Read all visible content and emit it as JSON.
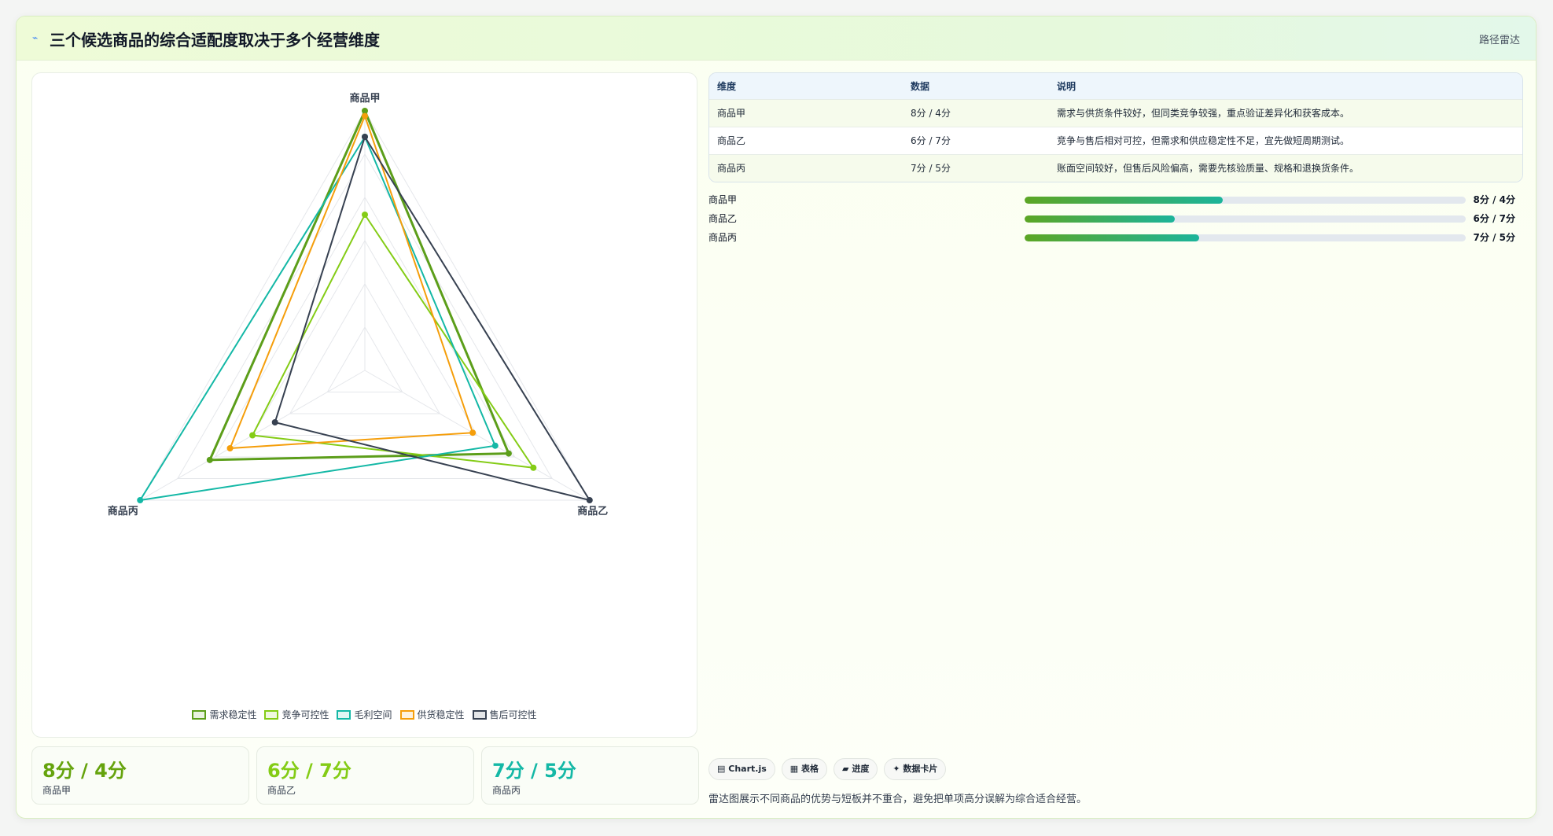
{
  "header": {
    "icon": "chart-line-icon",
    "title": "三个候选商品的综合适配度取决于多个经营维度",
    "tag": "路径雷达"
  },
  "chart_data": {
    "type": "radar",
    "axes": [
      "商品甲",
      "商品乙",
      "商品丙"
    ],
    "range": [
      0,
      10
    ],
    "grid_levels": 6,
    "series": [
      {
        "name": "需求稳定性",
        "values": [
          10,
          6.4,
          6.9
        ],
        "color": "#5c9e1a"
      },
      {
        "name": "竞争可控性",
        "values": [
          6,
          7.5,
          5
        ],
        "color": "#84cc16"
      },
      {
        "name": "毛利空间",
        "values": [
          9,
          5.8,
          10
        ],
        "color": "#14b8a6"
      },
      {
        "name": "供货稳定性",
        "values": [
          9.8,
          4.8,
          6
        ],
        "color": "#f59e0b"
      },
      {
        "name": "售后可控性",
        "values": [
          9,
          10,
          4
        ],
        "color": "#374151"
      }
    ],
    "legend_position": "bottom"
  },
  "stats": [
    {
      "value": "8分 / 4分",
      "label": "商品甲",
      "color": "#65a30d"
    },
    {
      "value": "6分 / 7分",
      "label": "商品乙",
      "color": "#84cc16"
    },
    {
      "value": "7分 / 5分",
      "label": "商品丙",
      "color": "#14b8a6"
    }
  ],
  "table": {
    "headers": [
      "维度",
      "数据",
      "说明"
    ],
    "rows": [
      [
        "商品甲",
        "8分 / 4分",
        "需求与供货条件较好，但同类竞争较强，重点验证差异化和获客成本。"
      ],
      [
        "商品乙",
        "6分 / 7分",
        "竞争与售后相对可控，但需求和供应稳定性不足，宜先做短周期测试。"
      ],
      [
        "商品丙",
        "7分 / 5分",
        "账面空间较好，但售后风险偏高，需要先核验质量、规格和退换货条件。"
      ]
    ]
  },
  "progress": [
    {
      "label": "商品甲",
      "value": "8分 / 4分",
      "fraction": 0.45
    },
    {
      "label": "商品乙",
      "value": "6分 / 7分",
      "fraction": 0.34
    },
    {
      "label": "商品丙",
      "value": "7分 / 5分",
      "fraction": 0.395
    }
  ],
  "chips": [
    {
      "icon": "chart-icon",
      "label": "Chart.js",
      "glyph": "▤"
    },
    {
      "icon": "table-icon",
      "label": "表格",
      "glyph": "▦"
    },
    {
      "icon": "progress-icon",
      "label": "进度",
      "glyph": "▰"
    },
    {
      "icon": "card-icon",
      "label": "数据卡片",
      "glyph": "✦"
    }
  ],
  "note": "雷达图展示不同商品的优势与短板并不重合，避免把单项高分误解为综合适合经营。"
}
